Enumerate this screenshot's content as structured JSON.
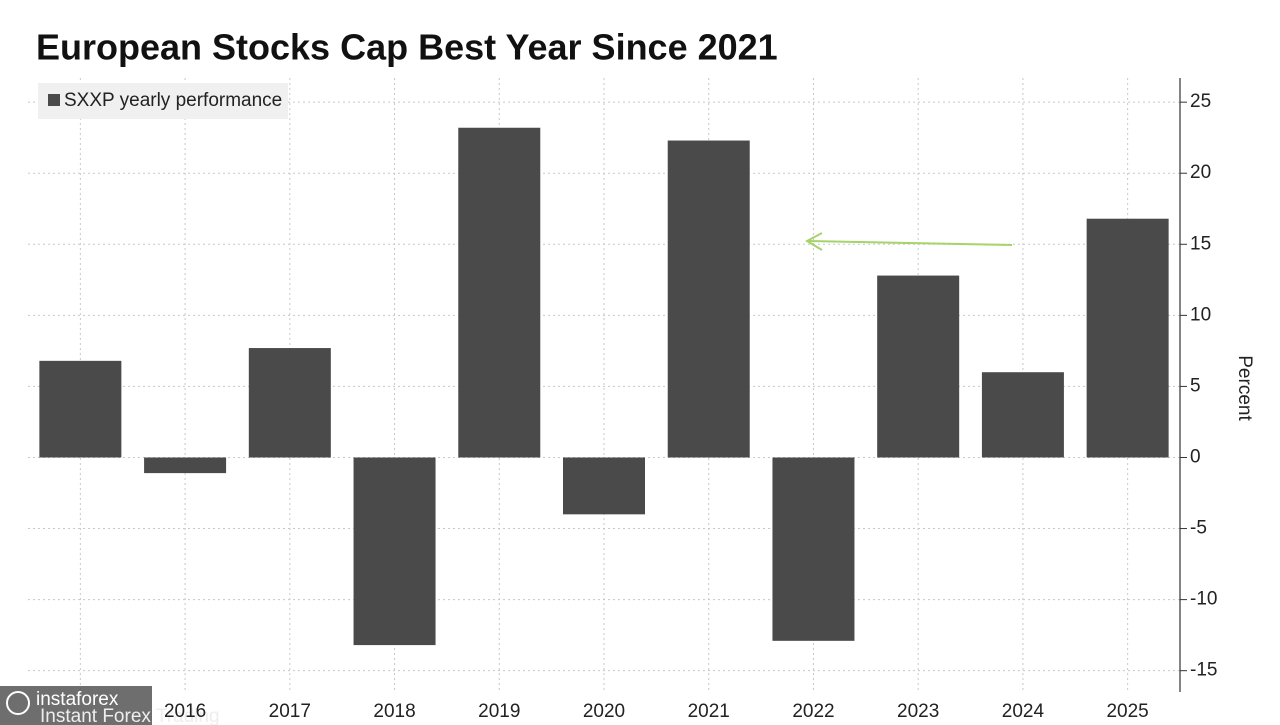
{
  "chart_data": {
    "type": "bar",
    "title": "European Stocks Cap Best Year Since 2021",
    "categories": [
      null,
      "2016",
      "2017",
      "2018",
      "2019",
      "2020",
      "2021",
      "2022",
      "2023",
      "2024",
      "2025"
    ],
    "series": [
      {
        "name": "SXXP yearly performance",
        "color": "#4a4a4a",
        "values": [
          6.8,
          -1.1,
          7.7,
          -13.2,
          23.2,
          -4.0,
          22.3,
          -12.9,
          12.8,
          6.0,
          16.8
        ]
      }
    ],
    "ylabel": "Percent",
    "ylim": [
      -16.5,
      26.7
    ],
    "yticks": [
      -15,
      -10,
      -5,
      0,
      5,
      10,
      15,
      20,
      25
    ],
    "grid": true,
    "legend": "top-left",
    "watermark": {
      "brand": "instaforex",
      "tagline": "Instant Forex Trading"
    }
  }
}
